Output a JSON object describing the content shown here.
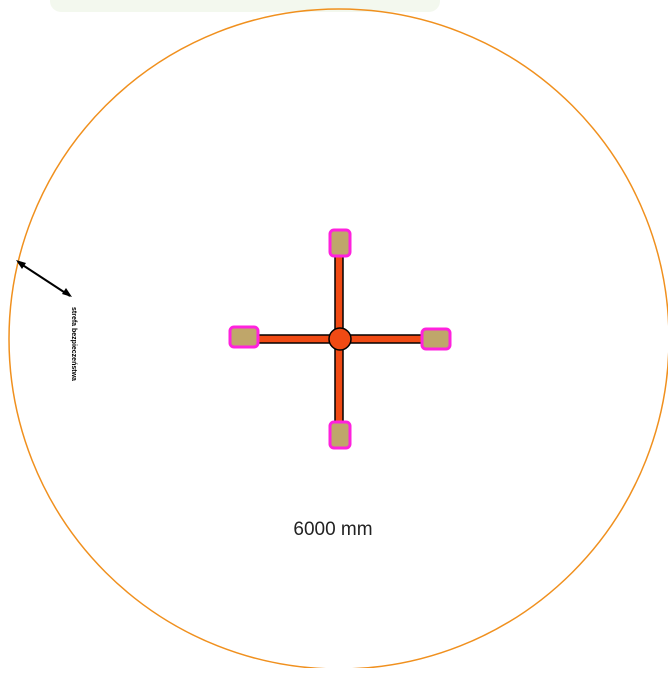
{
  "diagram": {
    "zone_label": "strefa bezpieczeństwa",
    "dimension": "6000 mm"
  }
}
